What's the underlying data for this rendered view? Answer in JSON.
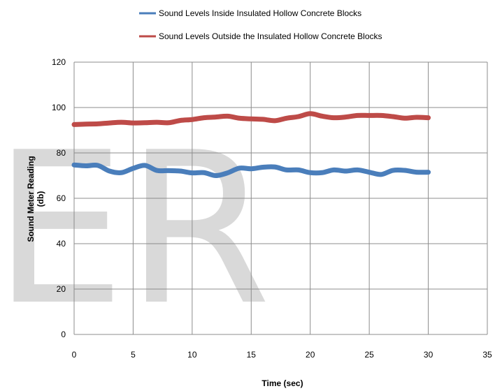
{
  "chart_data": {
    "type": "line",
    "xlabel": "Time (sec)",
    "ylabel": [
      "Sound Meter Reading",
      "(db)"
    ],
    "xlim": [
      0,
      35
    ],
    "ylim": [
      0,
      120
    ],
    "x_ticks": [
      0,
      5,
      10,
      15,
      20,
      25,
      30,
      35
    ],
    "y_ticks": [
      0,
      20,
      40,
      60,
      80,
      100,
      120
    ],
    "grid": true,
    "legend_position": "top",
    "watermark": "ER",
    "series": [
      {
        "name": "Sound Levels Inside  Insulated  Hollow Concrete Blocks",
        "color": "#4a7ebb",
        "x": [
          0,
          1,
          2,
          3,
          4,
          5,
          6,
          7,
          8,
          9,
          10,
          11,
          12,
          13,
          14,
          15,
          16,
          17,
          18,
          19,
          20,
          21,
          22,
          23,
          24,
          25,
          26,
          27,
          28,
          29,
          30
        ],
        "y": [
          74.7,
          74.3,
          74.5,
          72.0,
          71.3,
          73.2,
          74.5,
          72.3,
          72.2,
          72.0,
          71.2,
          71.3,
          70.0,
          71.2,
          73.3,
          73.0,
          73.7,
          73.8,
          72.5,
          72.5,
          71.3,
          71.3,
          72.5,
          72.0,
          72.5,
          71.5,
          70.5,
          72.3,
          72.3,
          71.5,
          71.5
        ]
      },
      {
        "name": "Sound Levels Outside the Insulated  Hollow  Concrete Blocks",
        "color": "#be4b48",
        "x": [
          0,
          1,
          2,
          3,
          4,
          5,
          6,
          7,
          8,
          9,
          10,
          11,
          12,
          13,
          14,
          15,
          16,
          17,
          18,
          19,
          20,
          21,
          22,
          23,
          24,
          25,
          26,
          27,
          28,
          29,
          30
        ],
        "y": [
          92.5,
          92.7,
          92.8,
          93.2,
          93.5,
          93.2,
          93.3,
          93.5,
          93.3,
          94.3,
          94.7,
          95.5,
          95.8,
          96.2,
          95.3,
          95.0,
          94.8,
          94.2,
          95.3,
          96.0,
          97.3,
          96.2,
          95.5,
          95.8,
          96.5,
          96.5,
          96.5,
          96.0,
          95.3,
          95.7,
          95.5
        ]
      }
    ]
  }
}
